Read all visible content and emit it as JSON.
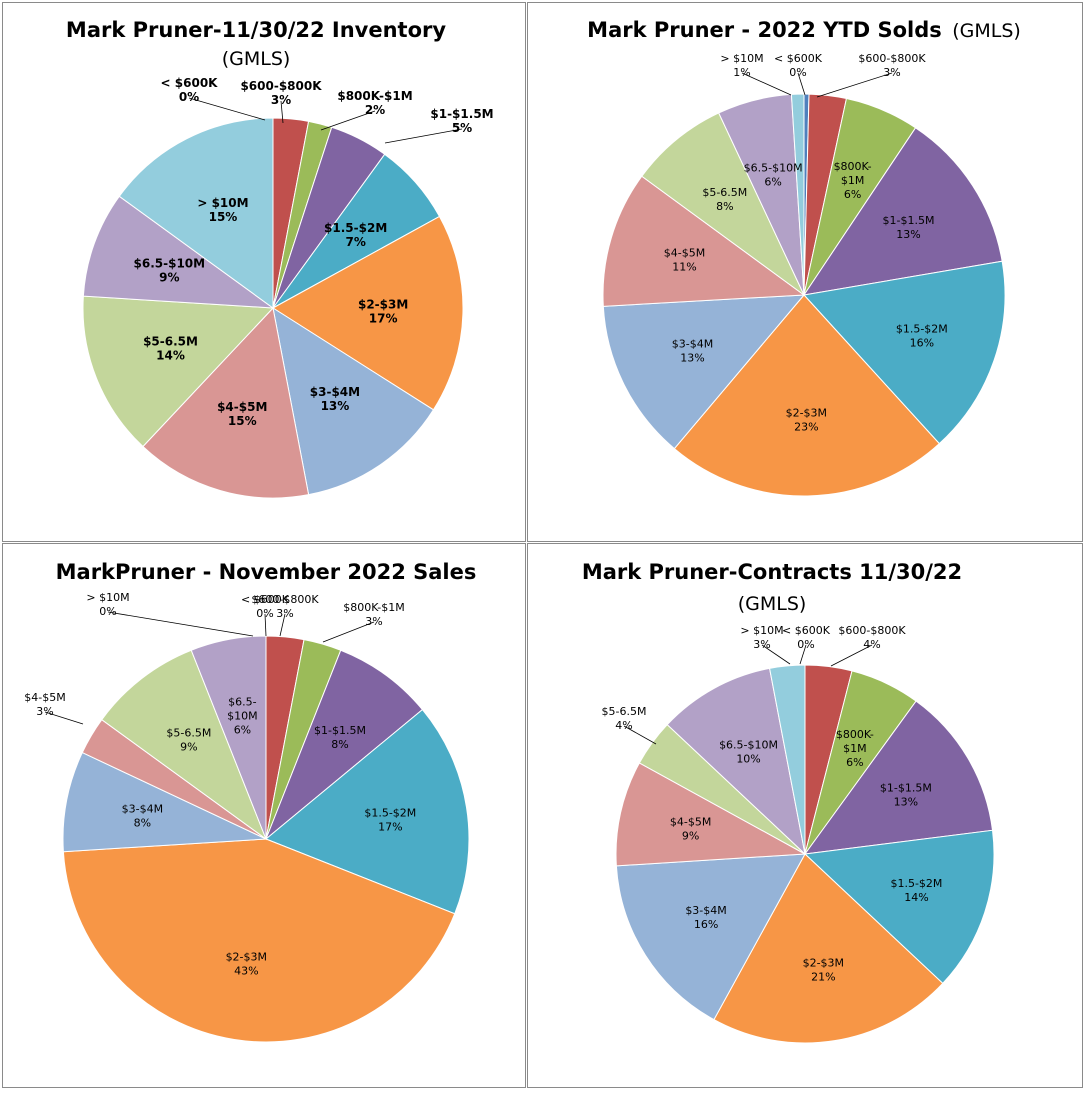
{
  "palette": {
    "< $600K": "#4f81bd",
    "$600-$800K": "#c0504d",
    "$800K-$1M": "#9bbb59",
    "$1-$1.5M": "#8064a2",
    "$1.5-$2M": "#4bacc6",
    "$2-$3M": "#f79646",
    "$3-$4M": "#95b3d7",
    "$4-$5M": "#d99694",
    "$5-6.5M": "#c3d69b",
    "$6.5-$10M": "#b2a1c7",
    "> $10M": "#93cddd"
  },
  "chart_data": [
    {
      "type": "pie",
      "title": "Mark Pruner-11/30/22 Inventory",
      "subtitle": "(GMLS)",
      "categories": [
        "< $600K",
        "$600-$800K",
        "$800K-$1M",
        "$1-$1.5M",
        "$1.5-$2M",
        "$2-$3M",
        "$3-$4M",
        "$4-$5M",
        "$5-6.5M",
        "$6.5-$10M",
        "> $10M"
      ],
      "labels": [
        "< $600K",
        "$600-$800K",
        "$800K-$1M",
        "$1-$1.5M",
        "$1.5-$2M",
        "$2-$3M",
        "$3-$4M",
        "$4-$5M",
        "$5-6.5M",
        "$6.5-$10M",
        "> $10M"
      ],
      "values": [
        0,
        3,
        2,
        5,
        7,
        17,
        13,
        15,
        14,
        9,
        15
      ],
      "value_labels": [
        "0%",
        "3%",
        "2%",
        "5%",
        "7%",
        "17%",
        "13%",
        "15%",
        "14%",
        "9%",
        "15%"
      ]
    },
    {
      "type": "pie",
      "title": "Mark Pruner - 2022 YTD Solds",
      "subtitle": "(GMLS)",
      "categories": [
        "< $600K",
        "$600-$800K",
        "$800K-$1M",
        "$1-$1.5M",
        "$1.5-$2M",
        "$2-$3M",
        "$3-$4M",
        "$4-$5M",
        "$5-6.5M",
        "$6.5-$10M",
        "> $10M"
      ],
      "labels": [
        "< $600K",
        "$600-$800K",
        "$800K- $1M",
        "$1-$1.5M",
        "$1.5-$2M",
        "$2-$3M",
        "$3-$4M",
        "$4-$5M",
        "$5-6.5M",
        "$6.5-$10M",
        "> $10M"
      ],
      "values": [
        0.4,
        3,
        6,
        13,
        16,
        23,
        13,
        11,
        8,
        6,
        1
      ],
      "value_labels": [
        "0%",
        "3%",
        "6%",
        "13%",
        "16%",
        "23%",
        "13%",
        "11%",
        "8%",
        "6%",
        "1%"
      ]
    },
    {
      "type": "pie",
      "title": "MarkPruner - November 2022 Sales",
      "subtitle": "",
      "categories": [
        "< $600K",
        "$600-$800K",
        "$800K-$1M",
        "$1-$1.5M",
        "$1.5-$2M",
        "$2-$3M",
        "$3-$4M",
        "$4-$5M",
        "$5-6.5M",
        "$6.5-$10M",
        "> $10M"
      ],
      "labels": [
        "< $600K",
        "$600-$800K",
        "$800K-$1M",
        "$1-$1.5M",
        "$1.5-$2M",
        "$2-$3M",
        "$3-$4M",
        "$4-$5M",
        "$5-6.5M",
        "$6.5- $10M",
        "> $10M"
      ],
      "values": [
        0,
        3,
        3,
        8,
        17,
        43,
        8,
        3,
        9,
        6,
        0
      ],
      "value_labels": [
        "0%",
        "3%",
        "3%",
        "8%",
        "17%",
        "43%",
        "8%",
        "3%",
        "9%",
        "6%",
        "0%"
      ]
    },
    {
      "type": "pie",
      "title": "Mark Pruner-Contracts 11/30/22",
      "subtitle": "(GMLS)",
      "categories": [
        "< $600K",
        "$600-$800K",
        "$800K-$1M",
        "$1-$1.5M",
        "$1.5-$2M",
        "$2-$3M",
        "$3-$4M",
        "$4-$5M",
        "$5-6.5M",
        "$6.5-$10M",
        "> $10M"
      ],
      "labels": [
        "< $600K",
        "$600-$800K",
        "$800K- $1M",
        "$1-$1.5M",
        "$1.5-$2M",
        "$2-$3M",
        "$3-$4M",
        "$4-$5M",
        "$5-6.5M",
        "$6.5-$10M",
        "> $10M"
      ],
      "values": [
        0,
        4,
        6,
        13,
        14,
        21,
        16,
        9,
        4,
        10,
        3
      ],
      "value_labels": [
        "0%",
        "4%",
        "6%",
        "13%",
        "14%",
        "21%",
        "16%",
        "9%",
        "4%",
        "10%",
        "3%"
      ]
    }
  ]
}
